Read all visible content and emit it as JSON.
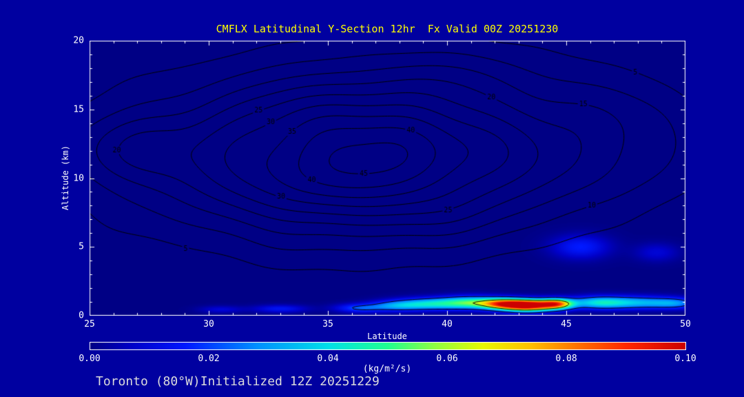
{
  "title": "CMFLX Latitudinal Y-Section 12hr  Fx Valid 00Z 20251230",
  "footer": {
    "location": "Toronto (80°W)",
    "init": "Initialized 12Z 20251229"
  },
  "axes": {
    "xlabel": "Latitude",
    "ylabel": "Altitude (km)",
    "x_ticks": [
      "25",
      "30",
      "35",
      "40",
      "45",
      "50"
    ],
    "y_ticks": [
      "0",
      "5",
      "10",
      "15",
      "20"
    ],
    "xlim": [
      25,
      50
    ],
    "ylim": [
      0,
      20
    ]
  },
  "colorbar": {
    "label": "(kg/m²/s)",
    "ticks": [
      "0.00",
      "0.02",
      "0.04",
      "0.06",
      "0.08",
      "0.10"
    ],
    "stops": [
      {
        "t": 0.0,
        "c": "#000085"
      },
      {
        "t": 0.07,
        "c": "#0000c8"
      },
      {
        "t": 0.16,
        "c": "#0018ff"
      },
      {
        "t": 0.28,
        "c": "#0090ff"
      },
      {
        "t": 0.4,
        "c": "#00e0e8"
      },
      {
        "t": 0.5,
        "c": "#20ff90"
      },
      {
        "t": 0.58,
        "c": "#90ff40"
      },
      {
        "t": 0.66,
        "c": "#e8f800"
      },
      {
        "t": 0.74,
        "c": "#ffc000"
      },
      {
        "t": 0.82,
        "c": "#ff7000"
      },
      {
        "t": 0.9,
        "c": "#ff2800"
      },
      {
        "t": 1.0,
        "c": "#cc0000"
      }
    ]
  },
  "colors": {
    "page_bg": "#0000a0",
    "plot_bg": "#000085",
    "title": "#ffff00",
    "text": "#ffffff",
    "frame": "#ffffff",
    "contour": "#000000",
    "footer": "#dcdcdc"
  },
  "chart_data": {
    "type": "contour",
    "title": "CMFLX Latitudinal Y-Section 12hr  Fx Valid 00Z 20251230",
    "xlabel": "Latitude",
    "ylabel": "Altitude (km)",
    "xlim": [
      25,
      50
    ],
    "ylim": [
      0,
      20
    ],
    "contour_levels": [
      5,
      10,
      15,
      20,
      25,
      30,
      35,
      40,
      45
    ],
    "flux_units": "kg/m²/s",
    "flux_range": [
      0,
      0.1
    ],
    "flux_contour_levels": [
      0.02,
      0.06
    ],
    "label_search_center": {
      "lat": 36.5,
      "alt": 11.5
    },
    "field_components": [
      {
        "amp": 46,
        "lat0": 36.5,
        "alt0": 11.5,
        "slat": 8.5,
        "salt": 5.5
      },
      {
        "amp": 10,
        "lat0": 26.5,
        "alt0": 12.0,
        "slat": 2.2,
        "salt": 2.6
      },
      {
        "amp": 8,
        "lat0": 47.5,
        "alt0": 13.0,
        "slat": 3.5,
        "salt": 4.0
      },
      {
        "amp": 5,
        "lat0": 40.0,
        "alt0": 17.5,
        "slat": 6.0,
        "salt": 3.0
      }
    ],
    "field_waves": [
      {
        "amp": 1.5,
        "kl": 0.9,
        "pl": 0.0,
        "ka": 0.55,
        "pa": 1.5708
      },
      {
        "amp": 1.1,
        "kl": 0.45,
        "pl": 2.1,
        "ka": 1.1,
        "pa": 0.5
      },
      {
        "amp": 0.8,
        "kl": 1.7,
        "pl": 2.27,
        "ka": 0.35,
        "pa": 0.0
      }
    ],
    "contour_labels": [
      {
        "text": "45",
        "level": 45,
        "lat": 36.5,
        "alt": 9.5
      },
      {
        "text": "40",
        "level": 40,
        "lat": 34.5,
        "alt": 10.0
      },
      {
        "text": "40",
        "level": 40,
        "lat": 39.0,
        "alt": 14.0
      },
      {
        "text": "35",
        "level": 35,
        "lat": 32.5,
        "alt": 14.0
      },
      {
        "text": "30",
        "level": 30,
        "lat": 30.5,
        "alt": 15.5
      },
      {
        "text": "30",
        "level": 30,
        "lat": 31.0,
        "alt": 7.0
      },
      {
        "text": "25",
        "level": 25,
        "lat": 29.5,
        "alt": 17.0
      },
      {
        "text": "25",
        "level": 25,
        "lat": 42.5,
        "alt": 5.0
      },
      {
        "text": "20",
        "level": 20,
        "lat": 27.0,
        "alt": 12.0
      },
      {
        "text": "20",
        "level": 20,
        "lat": 45.0,
        "alt": 18.5
      },
      {
        "text": "15",
        "level": 15,
        "lat": 46.0,
        "alt": 15.5
      },
      {
        "text": "10",
        "level": 10,
        "lat": 47.5,
        "alt": 7.5
      },
      {
        "text": "5",
        "level": 5,
        "lat": 27.5,
        "alt": 3.5
      },
      {
        "text": "5",
        "level": 5,
        "lat": 48.5,
        "alt": 18.0
      }
    ],
    "flux_blobs": [
      {
        "lat0": 43.4,
        "alt0": 0.75,
        "amp": 0.105,
        "slat": 1.0,
        "salt": 0.42
      },
      {
        "lat0": 44.6,
        "alt0": 0.85,
        "amp": 0.07,
        "slat": 0.7,
        "salt": 0.38
      },
      {
        "lat0": 42.3,
        "alt0": 0.85,
        "amp": 0.06,
        "slat": 0.9,
        "salt": 0.4
      },
      {
        "lat0": 41.0,
        "alt0": 0.95,
        "amp": 0.045,
        "slat": 1.3,
        "salt": 0.45
      },
      {
        "lat0": 39.2,
        "alt0": 0.85,
        "amp": 0.035,
        "slat": 1.4,
        "salt": 0.42
      },
      {
        "lat0": 37.8,
        "alt0": 0.7,
        "amp": 0.022,
        "slat": 1.1,
        "salt": 0.38
      },
      {
        "lat0": 46.3,
        "alt0": 0.95,
        "amp": 0.035,
        "slat": 1.2,
        "salt": 0.45
      },
      {
        "lat0": 48.0,
        "alt0": 0.95,
        "amp": 0.03,
        "slat": 1.5,
        "salt": 0.45
      },
      {
        "lat0": 49.6,
        "alt0": 0.9,
        "amp": 0.022,
        "slat": 1.0,
        "salt": 0.4
      },
      {
        "lat0": 36.3,
        "alt0": 0.55,
        "amp": 0.02,
        "slat": 1.0,
        "salt": 0.32
      },
      {
        "lat0": 33.0,
        "alt0": 0.5,
        "amp": 0.014,
        "slat": 1.1,
        "salt": 0.28
      },
      {
        "lat0": 30.5,
        "alt0": 0.45,
        "amp": 0.009,
        "slat": 0.9,
        "salt": 0.26
      },
      {
        "lat0": 45.6,
        "alt0": 5.0,
        "amp": 0.016,
        "slat": 1.2,
        "salt": 0.85
      },
      {
        "lat0": 48.8,
        "alt0": 4.6,
        "amp": 0.009,
        "slat": 0.9,
        "salt": 0.65
      }
    ]
  }
}
